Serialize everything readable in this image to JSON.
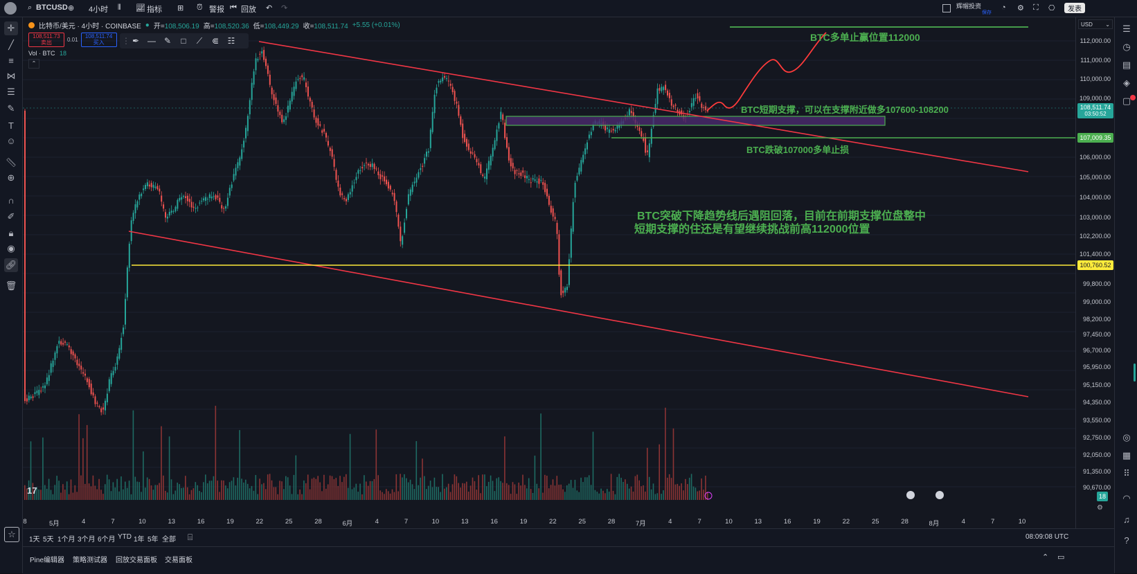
{
  "topbar": {
    "symbol": "BTCUSD",
    "interval": "4小时",
    "indicators": "指标",
    "alert": "警报",
    "replay": "回放",
    "account": "辉帽投资",
    "account_sub": "保存",
    "publish": "发表"
  },
  "legend": {
    "title": "比特币/美元 · 4小时 · COINBASE",
    "open_label": "开",
    "open": "108,506.19",
    "high_label": "高",
    "high": "108,520.36",
    "low_label": "低",
    "low": "108,449.29",
    "close_label": "收",
    "close": "108,511.74",
    "change": "+5.55 (+0.01%)",
    "sell_price": "108,511.73",
    "sell_label": "卖出",
    "spread": "0.01",
    "buy_price": "108,511.74",
    "buy_label": "买入",
    "vol_label": "Vol · BTC",
    "vol_value": "18"
  },
  "price_axis": {
    "currency": "USD",
    "ticks": [
      "112,000.00",
      "111,000.00",
      "110,000.00",
      "109,000.00",
      "106,000.00",
      "105,000.00",
      "104,000.00",
      "103,000.00",
      "102,200.00",
      "101,400.00",
      "99,800.00",
      "99,000.00",
      "98,200.00",
      "97,450.00",
      "96,700.00",
      "95,950.00",
      "95,150.00",
      "94,350.00",
      "93,550.00",
      "92,750.00",
      "92,050.00",
      "91,350.00",
      "90,670.00"
    ],
    "current_price": "108,511.74",
    "countdown": "03:50:52",
    "stop_level": "107,009.35",
    "support_level": "100,760.52",
    "vol_badge": "18"
  },
  "time_axis": {
    "ticks": [
      "8",
      "5月",
      "4",
      "7",
      "10",
      "13",
      "16",
      "19",
      "22",
      "25",
      "28",
      "6月",
      "4",
      "7",
      "10",
      "13",
      "16",
      "19",
      "22",
      "25",
      "28",
      "7月",
      "4",
      "7",
      "10",
      "13",
      "16",
      "19",
      "22",
      "25",
      "28",
      "8月",
      "4",
      "7",
      "10"
    ],
    "clock": "08:09:08 UTC"
  },
  "ranges": [
    "1天",
    "5天",
    "1个月",
    "3个月",
    "6个月",
    "YTD",
    "1年",
    "5年",
    "全部"
  ],
  "bottom_tabs": [
    "Pine编辑器",
    "策略测试器",
    "回放交易面板",
    "交易面板"
  ],
  "annotations": {
    "target": "BTC多单止赢位置112000",
    "support_zone": "BTC短期支撑，可以在支撑附近做多107600-108200",
    "stop": "BTC跌破107000多单止损",
    "comment_line1": "BTC突破下降趋势线后遇阻回落，目前在前期支撑位盘整中",
    "comment_line2": "短期支撑的住还是有望继续挑战前高112000位置"
  },
  "colors": {
    "up": "#26a69a",
    "down": "#ef5350",
    "trendline": "#f23645",
    "support_line": "#ffeb3b",
    "annotation": "#4caf50",
    "zone_fill": "#4a2a6e",
    "projection": "#ff3b3b"
  },
  "tv_logo": "17"
}
